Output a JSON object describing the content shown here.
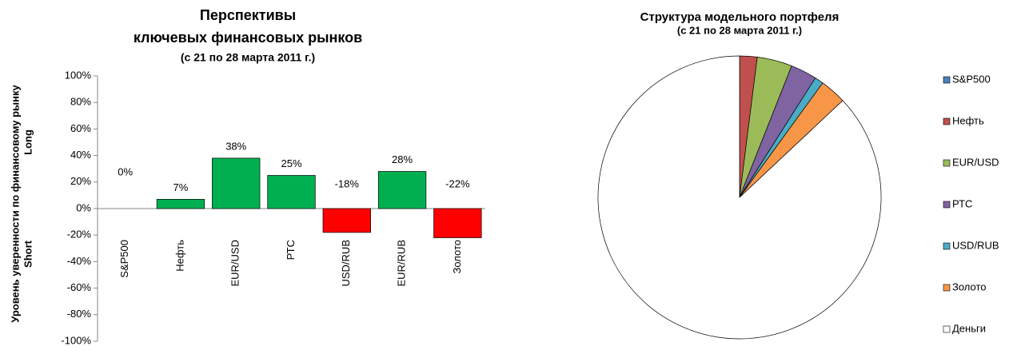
{
  "chart_data": [
    {
      "type": "bar",
      "title": [
        "Перспективы",
        "ключевых финансовых рынков",
        "(с  21 по 28 марта 2011 г.)"
      ],
      "y_label": "Уровень уверенности  по финансовому рынку",
      "y_label_top": "Long",
      "y_label_bottom": "Short",
      "categories": [
        "S&P500",
        "Нефть",
        "EUR/USD",
        "РТС",
        "USD/RUB",
        "EUR/RUB",
        "Золото"
      ],
      "values": [
        0,
        7,
        38,
        25,
        -18,
        28,
        -22
      ],
      "value_labels": [
        "0%",
        "7%",
        "38%",
        "25%",
        "-18%",
        "28%",
        "-22%"
      ],
      "colors": [
        "#00b050",
        "#00b050",
        "#00b050",
        "#00b050",
        "#ff0000",
        "#00b050",
        "#ff0000"
      ],
      "ylim": [
        -100,
        100
      ],
      "yticks": [
        {
          "value": 100,
          "label": "100%"
        },
        {
          "value": 80,
          "label": "80%"
        },
        {
          "value": 60,
          "label": "60%"
        },
        {
          "value": 40,
          "label": "40%"
        },
        {
          "value": 20,
          "label": "20%"
        },
        {
          "value": 0,
          "label": "0%"
        },
        {
          "value": -20,
          "label": "-20%"
        },
        {
          "value": -40,
          "label": "-40%"
        },
        {
          "value": -60,
          "label": "-60%"
        },
        {
          "value": -80,
          "label": "-80%"
        },
        {
          "value": -100,
          "label": "-100%"
        }
      ]
    },
    {
      "type": "pie",
      "title": "Структура модельного портфеля",
      "subtitle": "(с  21 по 28 марта 2011 г.)",
      "categories": [
        "S&P500",
        "Нефть",
        "EUR/USD",
        "РТС",
        "USD/RUB",
        "Золото",
        "Деньги"
      ],
      "values": [
        0,
        2,
        4,
        3,
        1,
        3,
        87
      ],
      "colors": [
        "#4f81bd",
        "#c0504d",
        "#9bbb59",
        "#8064a2",
        "#4bacc6",
        "#f79646",
        "#ffffff"
      ]
    }
  ]
}
